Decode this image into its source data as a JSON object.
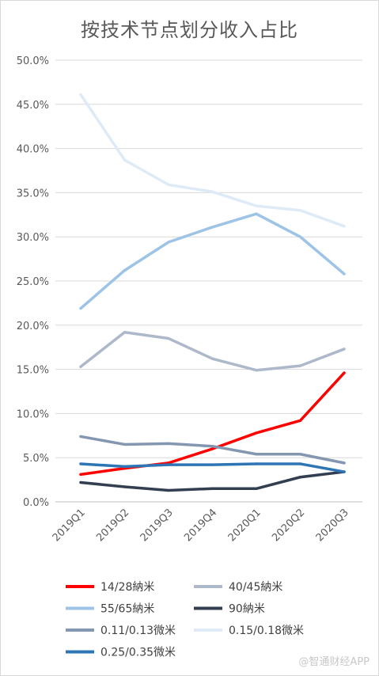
{
  "chart_data": {
    "type": "line",
    "title": "按技术节点划分收入占比",
    "categories": [
      "2019Q1",
      "2019Q2",
      "2019Q3",
      "2019Q4",
      "2020Q1",
      "2020Q2",
      "2020Q3"
    ],
    "ylim": [
      0,
      50
    ],
    "yticks": [
      "0.0%",
      "5.0%",
      "10.0%",
      "15.0%",
      "20.0%",
      "25.0%",
      "30.0%",
      "35.0%",
      "40.0%",
      "45.0%",
      "50.0%"
    ],
    "grid": true,
    "legend_position": "bottom",
    "series": [
      {
        "name": "14/28納米",
        "color": "#ff0000",
        "values": [
          3.1,
          3.8,
          4.4,
          6.0,
          7.8,
          9.2,
          14.6
        ]
      },
      {
        "name": "40/45納米",
        "color": "#adb9ca",
        "values": [
          15.3,
          19.2,
          18.5,
          16.2,
          14.9,
          15.4,
          17.3
        ]
      },
      {
        "name": "55/65納米",
        "color": "#9dc3e6",
        "values": [
          21.9,
          26.2,
          29.4,
          31.1,
          32.6,
          30.0,
          25.8
        ]
      },
      {
        "name": "90納米",
        "color": "#333f50",
        "values": [
          2.2,
          1.7,
          1.3,
          1.5,
          1.5,
          2.8,
          3.4
        ]
      },
      {
        "name": "0.11/0.13微米",
        "color": "#8497b0",
        "values": [
          7.4,
          6.5,
          6.6,
          6.3,
          5.4,
          5.4,
          4.4
        ]
      },
      {
        "name": "0.15/0.18微米",
        "color": "#deebf7",
        "values": [
          46.1,
          38.7,
          35.9,
          35.1,
          33.5,
          33.0,
          31.2
        ]
      },
      {
        "name": "0.25/0.35微米",
        "color": "#2e75b6",
        "values": [
          4.3,
          4.0,
          4.2,
          4.2,
          4.3,
          4.3,
          3.4
        ]
      }
    ]
  },
  "watermark": "@智通财经APP"
}
